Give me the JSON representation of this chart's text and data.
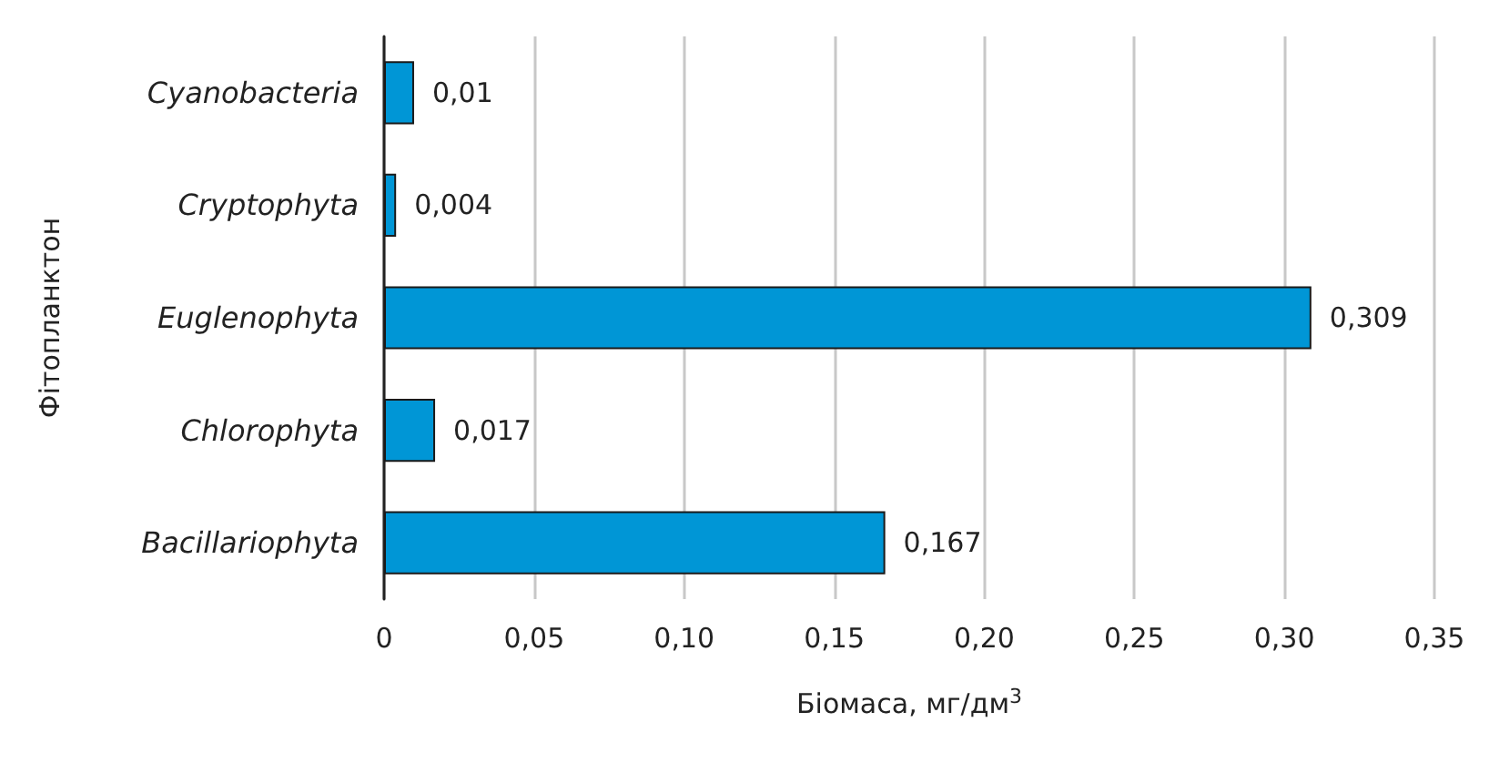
{
  "chart_data": {
    "type": "bar",
    "orientation": "horizontal",
    "xlabel": "Біомаса, мг/дм$^{3}$",
    "ylabel": "Фітопланктон",
    "categories": [
      "Cyanobacteria",
      "Cryptophyta",
      "Euglenophyta",
      "Chlorophyta",
      "Bacillariophyta"
    ],
    "values": [
      0.01,
      0.004,
      0.309,
      0.017,
      0.167
    ],
    "value_labels": [
      "0,01",
      "0,004",
      "0,309",
      "0,017",
      "0,167"
    ],
    "color": "#0096d6",
    "xlim": [
      0,
      0.35
    ],
    "xticks": [
      0,
      {
        "value": 0.05,
        "label": "0,05"
      },
      {
        "value": 0.1,
        "label": "0,10"
      },
      {
        "value": 0.15,
        "label": "0,15"
      },
      {
        "value": 0.2,
        "label": "0,20"
      },
      {
        "value": 0.25,
        "label": "0,25"
      },
      {
        "value": 0.3,
        "label": "0,30"
      },
      {
        "value": 0.35,
        "label": "0,35"
      }
    ],
    "grid": "x"
  }
}
